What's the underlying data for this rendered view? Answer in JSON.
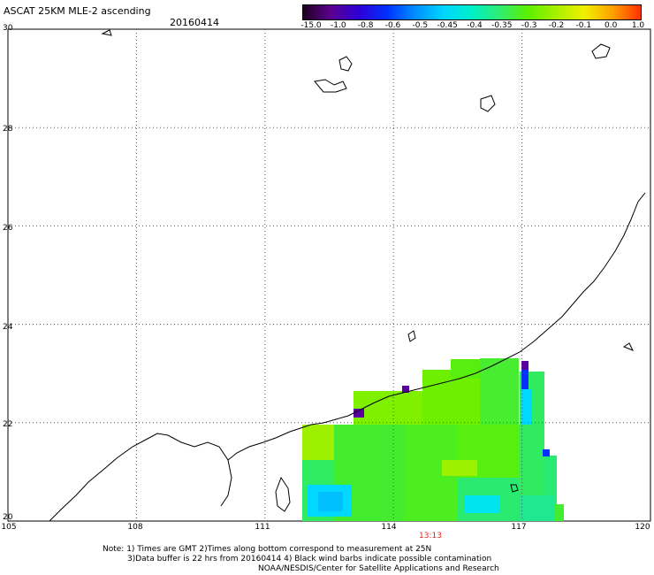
{
  "header": {
    "title": "ASCAT 25KM MLE-2 ascending",
    "date": "20160414"
  },
  "colorbar": {
    "labels": [
      "-15.0",
      "-1.0",
      "-0.8",
      "-0.6",
      "-0.5",
      "-0.45",
      "-0.4",
      "-0.35",
      "-0.3",
      "-0.2",
      "-0.1",
      "0.0",
      "1.0"
    ],
    "colors": [
      "#200020",
      "#5a0090",
      "#2d00d8",
      "#0032ff",
      "#0090ff",
      "#00d6ff",
      "#00f0c8",
      "#30ec70",
      "#5cf000",
      "#a8f000",
      "#f0f000",
      "#ffa000",
      "#ff3000"
    ]
  },
  "map": {
    "lat_range": [
      20,
      30
    ],
    "lon_range": [
      105,
      120
    ],
    "lat_ticks": [
      "30",
      "28",
      "26",
      "24",
      "22",
      "20"
    ],
    "lon_ticks": [
      "105",
      "108",
      "111",
      "114",
      "117",
      "120"
    ],
    "time_label": "13:13"
  },
  "footer": {
    "line1": "Note: 1) Times are GMT 2)Times along bottom correspond to measurement at 25N",
    "line2": "3)Data buffer is 22 hrs from 20160414 4) Black wind barbs indicate possible contamination",
    "line3": "NOAA/NESDIS/Center for Satellite Applications and Research"
  }
}
